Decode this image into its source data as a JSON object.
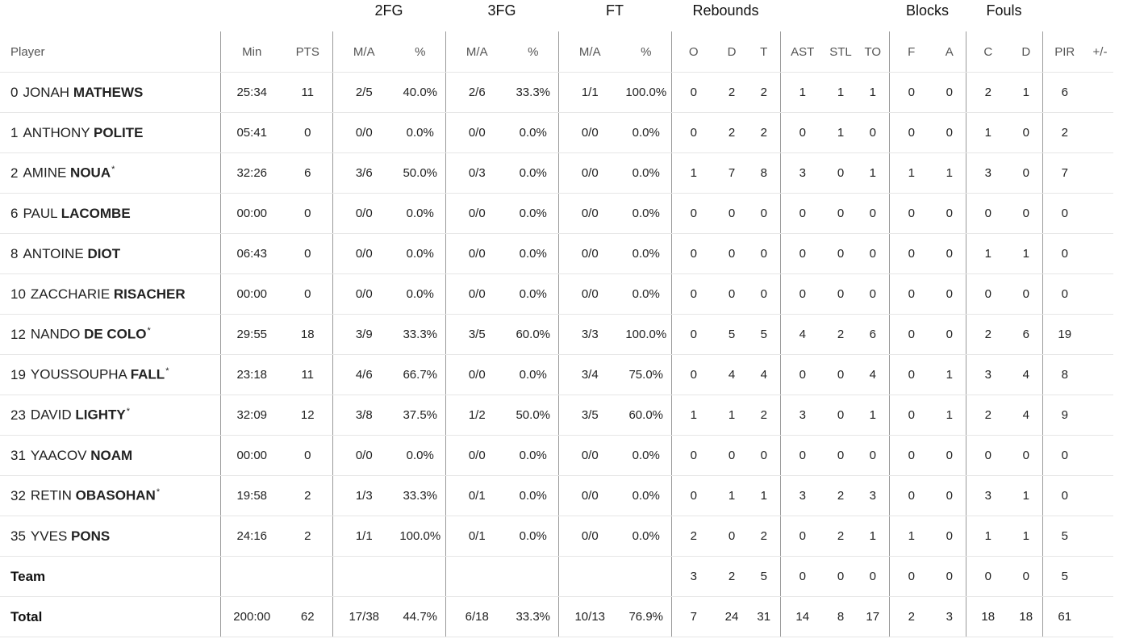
{
  "groups": {
    "fg2": "2FG",
    "fg3": "3FG",
    "ft": "FT",
    "rebounds": "Rebounds",
    "blocks": "Blocks",
    "fouls": "Fouls"
  },
  "columns": {
    "player": "Player",
    "min": "Min",
    "pts": "PTS",
    "fg2_ma": "M/A",
    "fg2_pct": "%",
    "fg3_ma": "M/A",
    "fg3_pct": "%",
    "ft_ma": "M/A",
    "ft_pct": "%",
    "reb_o": "O",
    "reb_d": "D",
    "reb_t": "T",
    "ast": "AST",
    "stl": "STL",
    "to": "TO",
    "blk_f": "F",
    "blk_a": "A",
    "foul_c": "C",
    "foul_d": "D",
    "pir": "PIR",
    "pm": "+/-"
  },
  "players": [
    {
      "num": "0",
      "first": "JONAH",
      "last": "MATHEWS",
      "star": "",
      "min": "25:34",
      "pts": "11",
      "fg2_ma": "2/5",
      "fg2_pct": "40.0%",
      "fg3_ma": "2/6",
      "fg3_pct": "33.3%",
      "ft_ma": "1/1",
      "ft_pct": "100.0%",
      "reb_o": "0",
      "reb_d": "2",
      "reb_t": "2",
      "ast": "1",
      "stl": "1",
      "to": "1",
      "blk_f": "0",
      "blk_a": "0",
      "foul_c": "2",
      "foul_d": "1",
      "pir": "6",
      "pm": ""
    },
    {
      "num": "1",
      "first": "ANTHONY",
      "last": "POLITE",
      "star": "",
      "min": "05:41",
      "pts": "0",
      "fg2_ma": "0/0",
      "fg2_pct": "0.0%",
      "fg3_ma": "0/0",
      "fg3_pct": "0.0%",
      "ft_ma": "0/0",
      "ft_pct": "0.0%",
      "reb_o": "0",
      "reb_d": "2",
      "reb_t": "2",
      "ast": "0",
      "stl": "1",
      "to": "0",
      "blk_f": "0",
      "blk_a": "0",
      "foul_c": "1",
      "foul_d": "0",
      "pir": "2",
      "pm": ""
    },
    {
      "num": "2",
      "first": "AMINE",
      "last": "NOUA",
      "star": "*",
      "min": "32:26",
      "pts": "6",
      "fg2_ma": "3/6",
      "fg2_pct": "50.0%",
      "fg3_ma": "0/3",
      "fg3_pct": "0.0%",
      "ft_ma": "0/0",
      "ft_pct": "0.0%",
      "reb_o": "1",
      "reb_d": "7",
      "reb_t": "8",
      "ast": "3",
      "stl": "0",
      "to": "1",
      "blk_f": "1",
      "blk_a": "1",
      "foul_c": "3",
      "foul_d": "0",
      "pir": "7",
      "pm": ""
    },
    {
      "num": "6",
      "first": "PAUL",
      "last": "LACOMBE",
      "star": "",
      "min": "00:00",
      "pts": "0",
      "fg2_ma": "0/0",
      "fg2_pct": "0.0%",
      "fg3_ma": "0/0",
      "fg3_pct": "0.0%",
      "ft_ma": "0/0",
      "ft_pct": "0.0%",
      "reb_o": "0",
      "reb_d": "0",
      "reb_t": "0",
      "ast": "0",
      "stl": "0",
      "to": "0",
      "blk_f": "0",
      "blk_a": "0",
      "foul_c": "0",
      "foul_d": "0",
      "pir": "0",
      "pm": ""
    },
    {
      "num": "8",
      "first": "ANTOINE",
      "last": "DIOT",
      "star": "",
      "min": "06:43",
      "pts": "0",
      "fg2_ma": "0/0",
      "fg2_pct": "0.0%",
      "fg3_ma": "0/0",
      "fg3_pct": "0.0%",
      "ft_ma": "0/0",
      "ft_pct": "0.0%",
      "reb_o": "0",
      "reb_d": "0",
      "reb_t": "0",
      "ast": "0",
      "stl": "0",
      "to": "0",
      "blk_f": "0",
      "blk_a": "0",
      "foul_c": "1",
      "foul_d": "1",
      "pir": "0",
      "pm": ""
    },
    {
      "num": "10",
      "first": "ZACCHARIE",
      "last": "RISACHER",
      "star": "",
      "min": "00:00",
      "pts": "0",
      "fg2_ma": "0/0",
      "fg2_pct": "0.0%",
      "fg3_ma": "0/0",
      "fg3_pct": "0.0%",
      "ft_ma": "0/0",
      "ft_pct": "0.0%",
      "reb_o": "0",
      "reb_d": "0",
      "reb_t": "0",
      "ast": "0",
      "stl": "0",
      "to": "0",
      "blk_f": "0",
      "blk_a": "0",
      "foul_c": "0",
      "foul_d": "0",
      "pir": "0",
      "pm": ""
    },
    {
      "num": "12",
      "first": "NANDO",
      "last": "DE COLO",
      "star": "*",
      "min": "29:55",
      "pts": "18",
      "fg2_ma": "3/9",
      "fg2_pct": "33.3%",
      "fg3_ma": "3/5",
      "fg3_pct": "60.0%",
      "ft_ma": "3/3",
      "ft_pct": "100.0%",
      "reb_o": "0",
      "reb_d": "5",
      "reb_t": "5",
      "ast": "4",
      "stl": "2",
      "to": "6",
      "blk_f": "0",
      "blk_a": "0",
      "foul_c": "2",
      "foul_d": "6",
      "pir": "19",
      "pm": ""
    },
    {
      "num": "19",
      "first": "YOUSSOUPHA",
      "last": "FALL",
      "star": "*",
      "min": "23:18",
      "pts": "11",
      "fg2_ma": "4/6",
      "fg2_pct": "66.7%",
      "fg3_ma": "0/0",
      "fg3_pct": "0.0%",
      "ft_ma": "3/4",
      "ft_pct": "75.0%",
      "reb_o": "0",
      "reb_d": "4",
      "reb_t": "4",
      "ast": "0",
      "stl": "0",
      "to": "4",
      "blk_f": "0",
      "blk_a": "1",
      "foul_c": "3",
      "foul_d": "4",
      "pir": "8",
      "pm": ""
    },
    {
      "num": "23",
      "first": "DAVID",
      "last": "LIGHTY",
      "star": "*",
      "min": "32:09",
      "pts": "12",
      "fg2_ma": "3/8",
      "fg2_pct": "37.5%",
      "fg3_ma": "1/2",
      "fg3_pct": "50.0%",
      "ft_ma": "3/5",
      "ft_pct": "60.0%",
      "reb_o": "1",
      "reb_d": "1",
      "reb_t": "2",
      "ast": "3",
      "stl": "0",
      "to": "1",
      "blk_f": "0",
      "blk_a": "1",
      "foul_c": "2",
      "foul_d": "4",
      "pir": "9",
      "pm": ""
    },
    {
      "num": "31",
      "first": "YAACOV",
      "last": "NOAM",
      "star": "",
      "min": "00:00",
      "pts": "0",
      "fg2_ma": "0/0",
      "fg2_pct": "0.0%",
      "fg3_ma": "0/0",
      "fg3_pct": "0.0%",
      "ft_ma": "0/0",
      "ft_pct": "0.0%",
      "reb_o": "0",
      "reb_d": "0",
      "reb_t": "0",
      "ast": "0",
      "stl": "0",
      "to": "0",
      "blk_f": "0",
      "blk_a": "0",
      "foul_c": "0",
      "foul_d": "0",
      "pir": "0",
      "pm": ""
    },
    {
      "num": "32",
      "first": "RETIN",
      "last": "OBASOHAN",
      "star": "*",
      "min": "19:58",
      "pts": "2",
      "fg2_ma": "1/3",
      "fg2_pct": "33.3%",
      "fg3_ma": "0/1",
      "fg3_pct": "0.0%",
      "ft_ma": "0/0",
      "ft_pct": "0.0%",
      "reb_o": "0",
      "reb_d": "1",
      "reb_t": "1",
      "ast": "3",
      "stl": "2",
      "to": "3",
      "blk_f": "0",
      "blk_a": "0",
      "foul_c": "3",
      "foul_d": "1",
      "pir": "0",
      "pm": ""
    },
    {
      "num": "35",
      "first": "YVES",
      "last": "PONS",
      "star": "",
      "min": "24:16",
      "pts": "2",
      "fg2_ma": "1/1",
      "fg2_pct": "100.0%",
      "fg3_ma": "0/1",
      "fg3_pct": "0.0%",
      "ft_ma": "0/0",
      "ft_pct": "0.0%",
      "reb_o": "2",
      "reb_d": "0",
      "reb_t": "2",
      "ast": "0",
      "stl": "2",
      "to": "1",
      "blk_f": "1",
      "blk_a": "0",
      "foul_c": "1",
      "foul_d": "1",
      "pir": "5",
      "pm": ""
    }
  ],
  "team": {
    "label": "Team",
    "min": "",
    "pts": "",
    "fg2_ma": "",
    "fg2_pct": "",
    "fg3_ma": "",
    "fg3_pct": "",
    "ft_ma": "",
    "ft_pct": "",
    "reb_o": "3",
    "reb_d": "2",
    "reb_t": "5",
    "ast": "0",
    "stl": "0",
    "to": "0",
    "blk_f": "0",
    "blk_a": "0",
    "foul_c": "0",
    "foul_d": "0",
    "pir": "5",
    "pm": ""
  },
  "total": {
    "label": "Total",
    "min": "200:00",
    "pts": "62",
    "fg2_ma": "17/38",
    "fg2_pct": "44.7%",
    "fg3_ma": "6/18",
    "fg3_pct": "33.3%",
    "ft_ma": "10/13",
    "ft_pct": "76.9%",
    "reb_o": "7",
    "reb_d": "24",
    "reb_t": "31",
    "ast": "14",
    "stl": "8",
    "to": "17",
    "blk_f": "2",
    "blk_a": "3",
    "foul_c": "18",
    "foul_d": "18",
    "pir": "61",
    "pm": ""
  }
}
